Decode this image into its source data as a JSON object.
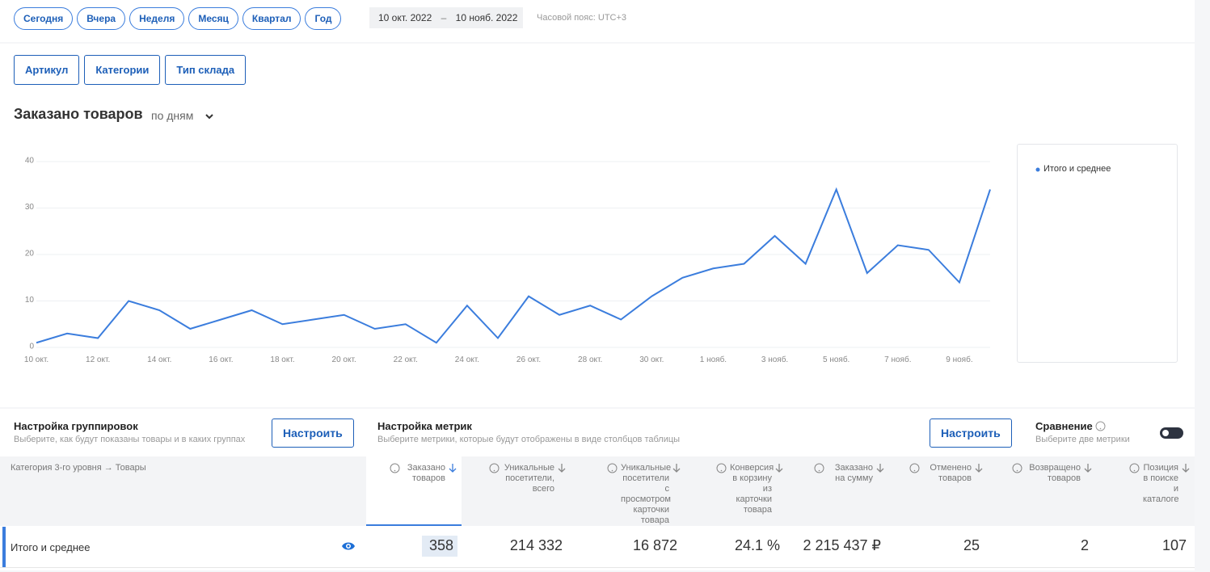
{
  "filters": {
    "periods": [
      "Сегодня",
      "Вчера",
      "Неделя",
      "Месяц",
      "Квартал",
      "Год"
    ],
    "date_from": "10 окт. 2022",
    "date_sep": "–",
    "date_to": "10 нояб. 2022",
    "timezone": "Часовой пояс: UTC+3"
  },
  "group_buttons": [
    "Артикул",
    "Категории",
    "Тип склада"
  ],
  "chart_data": {
    "type": "line",
    "title": "Заказано товаров",
    "period_select": "по дням",
    "categories": [
      "10 окт.",
      null,
      "12 окт.",
      null,
      "14 окт.",
      null,
      "16 окт.",
      null,
      "18 окт.",
      null,
      "20 окт.",
      null,
      "22 окт.",
      null,
      "24 окт.",
      null,
      "26 окт.",
      null,
      "28 окт.",
      null,
      "30 окт.",
      null,
      "1 нояб.",
      null,
      "3 нояб.",
      null,
      "5 нояб.",
      null,
      "7 нояб.",
      null,
      "9 нояб.",
      null
    ],
    "series": [
      {
        "name": "Итого и среднее",
        "color": "#3b7ddd",
        "values": [
          1,
          3,
          2,
          10,
          8,
          4,
          6,
          8,
          5,
          6,
          7,
          4,
          5,
          1,
          9,
          2,
          11,
          7,
          9,
          6,
          11,
          15,
          17,
          18,
          24,
          18,
          34,
          16,
          22,
          21,
          14,
          34
        ]
      }
    ],
    "ylim": [
      0,
      40
    ],
    "yticks": [
      0,
      10,
      20,
      30,
      40
    ],
    "grid": true
  },
  "settings": {
    "grouping": {
      "title": "Настройка группировок",
      "description": "Выберите, как будут показаны товары и в каких группах",
      "button": "Настроить"
    },
    "metrics": {
      "title": "Настройка метрик",
      "description": "Выберите метрики, которые будут отображены в виде столбцов таблицы",
      "button": "Настроить"
    },
    "comparison": {
      "title": "Сравнение",
      "description": "Выберите две метрики"
    }
  },
  "table": {
    "columns": [
      "Категория 3-го уровня → Товары",
      "Заказано товаров",
      "Уникальные посетители, всего",
      "Уникальные посетители с просмотром карточки товара",
      "Конверсия в корзину из карточки товара",
      "Заказано на сумму",
      "Отменено товаров",
      "Возвращено товаров",
      "Позиция в поиске и каталоге"
    ],
    "rows": [
      [
        "Итого и среднее",
        "358",
        "214 332",
        "16 872",
        "24.1 %",
        "2 215 437 ₽",
        "25",
        "2",
        "107"
      ]
    ]
  }
}
